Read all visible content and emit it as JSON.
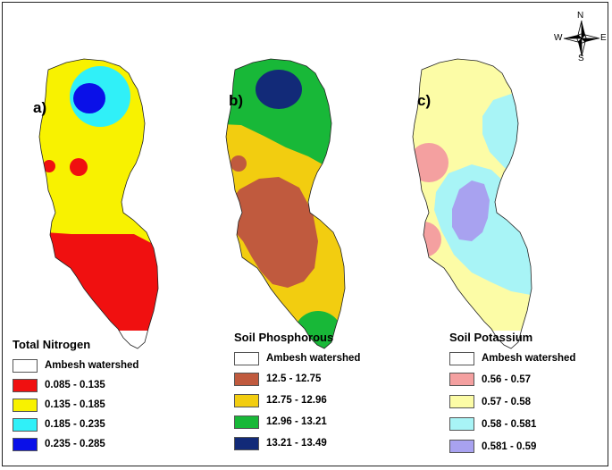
{
  "panels": [
    {
      "label": "a)",
      "legend_title": "Total Nitrogen",
      "watershed_label": "Ambesh watershed",
      "classes": [
        {
          "range": "0.085 - 0.135",
          "color": "#f01010"
        },
        {
          "range": "0.135 - 0.185",
          "color": "#f8f200"
        },
        {
          "range": "0.185 - 0.235",
          "color": "#30f0f8"
        },
        {
          "range": "0.235 - 0.285",
          "color": "#0a10e8"
        }
      ]
    },
    {
      "label": "b)",
      "legend_title": "Soil Phosphorous",
      "watershed_label": "Ambesh watershed",
      "classes": [
        {
          "range": "12.5 - 12.75",
          "color": "#c05a3e"
        },
        {
          "range": "12.75 - 12.96",
          "color": "#f2cd10"
        },
        {
          "range": "12.96 - 13.21",
          "color": "#18b838"
        },
        {
          "range": "13.21 - 13.49",
          "color": "#122a78"
        }
      ]
    },
    {
      "label": "c)",
      "legend_title": "Soil Potassium",
      "watershed_label": "Ambesh watershed",
      "classes": [
        {
          "range": "0.56 - 0.57",
          "color": "#f4a0a0"
        },
        {
          "range": "0.57 - 0.58",
          "color": "#fcfca6"
        },
        {
          "range": "0.58 - 0.581",
          "color": "#a8f4f6"
        },
        {
          "range": "0.581 - 0.59",
          "color": "#a8a2f0"
        }
      ]
    }
  ],
  "compass": {
    "north": "N",
    "south": "S",
    "east": "E",
    "west": "W"
  }
}
